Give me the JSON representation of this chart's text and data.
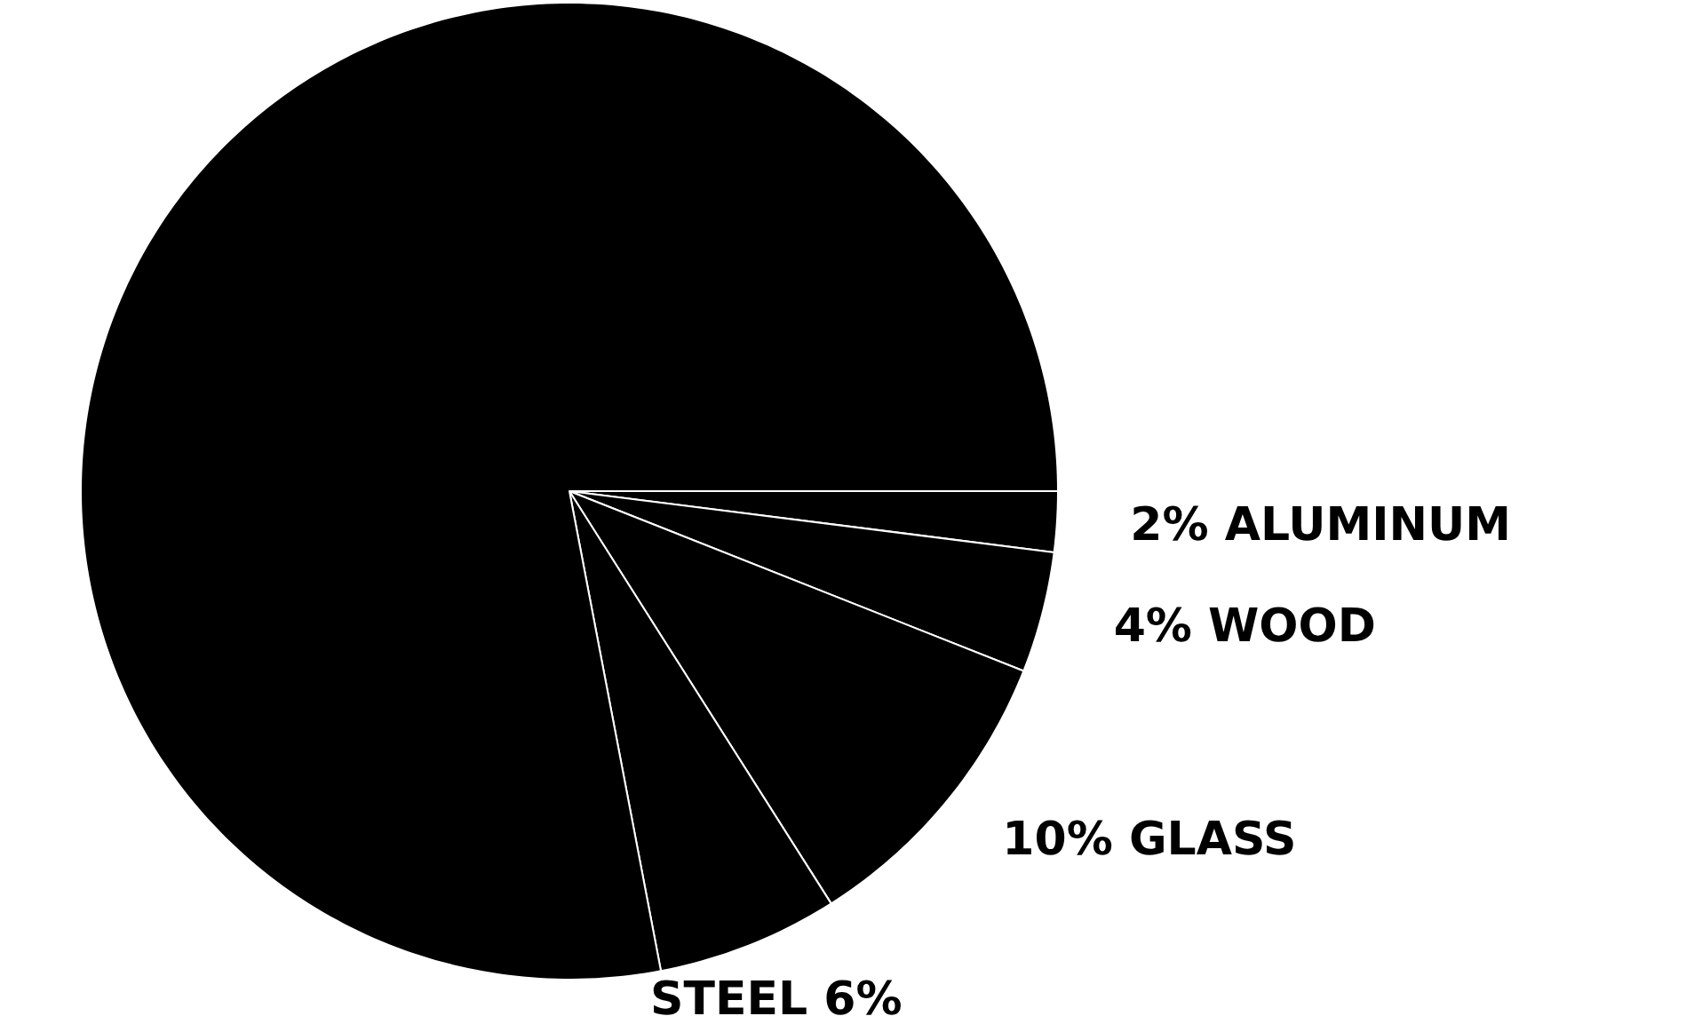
{
  "chart_data": {
    "type": "pie",
    "categories": [
      "ALUMINUM",
      "WOOD",
      "GLASS",
      "STEEL",
      null
    ],
    "values": [
      2,
      4,
      10,
      6,
      78
    ],
    "colors": [
      "#000000",
      "#000000",
      "#000000",
      "#000000",
      "#000000"
    ],
    "value_labels": [
      "2%",
      "4%",
      "10%",
      "6%",
      null
    ]
  }
}
